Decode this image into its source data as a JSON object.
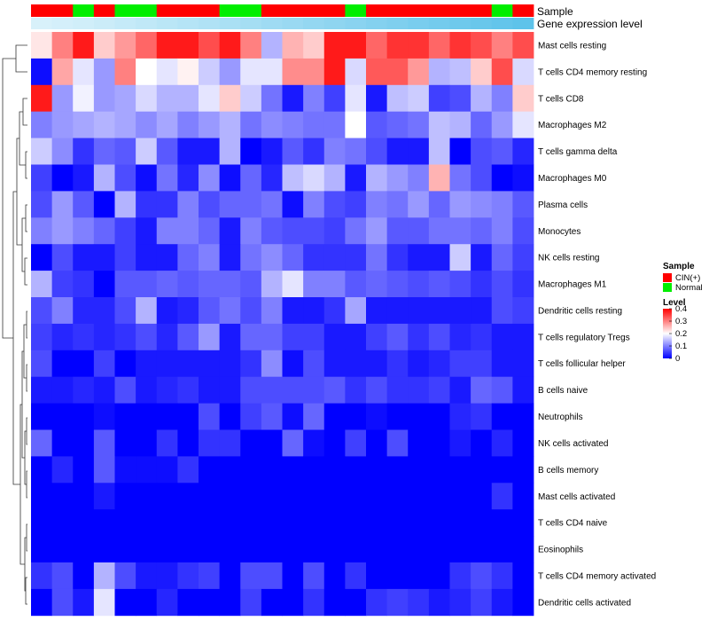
{
  "chart_data": {
    "type": "heatmap",
    "title": "",
    "annotations": {
      "sample_title": "Sample",
      "gene_expr_title": "Gene expression level",
      "sample_groups": [
        "CIN(+)",
        "CIN(+)",
        "Normal",
        "CIN(+)",
        "Normal",
        "Normal",
        "CIN(+)",
        "CIN(+)",
        "CIN(+)",
        "Normal",
        "Normal",
        "CIN(+)",
        "CIN(+)",
        "CIN(+)",
        "CIN(+)",
        "Normal",
        "CIN(+)",
        "CIN(+)",
        "CIN(+)",
        "CIN(+)",
        "CIN(+)",
        "CIN(+)",
        "Normal",
        "CIN(+)"
      ],
      "gene_expression": [
        0.1,
        0.13,
        0.16,
        0.2,
        0.24,
        0.28,
        0.32,
        0.36,
        0.4,
        0.44,
        0.48,
        0.52,
        0.56,
        0.6,
        0.64,
        0.68,
        0.72,
        0.76,
        0.8,
        0.84,
        0.88,
        0.92,
        0.96,
        1.0
      ]
    },
    "rows": [
      "Mast cells resting",
      "T cells CD4 memory resting",
      "T cells CD8",
      "Macrophages M2",
      "T cells gamma delta",
      "Macrophages M0",
      "Plasma cells",
      "Monocytes",
      "NK cells resting",
      "Macrophages M1",
      "Dendritic cells resting",
      "T cells regulatory  Tregs",
      "T cells follicular helper",
      "B cells naive",
      "Neutrophils",
      "NK cells activated",
      "B cells memory",
      "Mast cells activated",
      "T cells CD4 naive",
      "Eosinophils",
      "T cells CD4 memory activated",
      "Dendritic cells activated"
    ],
    "values": [
      [
        0.22,
        0.3,
        0.38,
        0.24,
        0.28,
        0.32,
        0.38,
        0.38,
        0.34,
        0.38,
        0.3,
        0.14,
        0.26,
        0.24,
        0.38,
        0.38,
        0.32,
        0.36,
        0.36,
        0.32,
        0.36,
        0.34,
        0.3,
        0.34
      ],
      [
        0.01,
        0.27,
        0.18,
        0.12,
        0.3,
        0.2,
        0.18,
        0.21,
        0.16,
        0.12,
        0.18,
        0.18,
        0.29,
        0.29,
        0.38,
        0.17,
        0.33,
        0.33,
        0.28,
        0.14,
        0.15,
        0.24,
        0.34,
        0.17
      ],
      [
        0.38,
        0.12,
        0.19,
        0.12,
        0.13,
        0.17,
        0.14,
        0.14,
        0.18,
        0.24,
        0.16,
        0.09,
        0.02,
        0.1,
        0.05,
        0.18,
        0.02,
        0.15,
        0.16,
        0.05,
        0.06,
        0.14,
        0.1,
        0.24
      ],
      [
        0.1,
        0.12,
        0.13,
        0.14,
        0.13,
        0.11,
        0.13,
        0.1,
        0.12,
        0.14,
        0.09,
        0.11,
        0.1,
        0.09,
        0.09,
        0.2,
        0.07,
        0.08,
        0.09,
        0.15,
        0.14,
        0.08,
        0.12,
        0.18
      ],
      [
        0.16,
        0.11,
        0.04,
        0.08,
        0.07,
        0.16,
        0.07,
        0.02,
        0.02,
        0.14,
        0.0,
        0.02,
        0.07,
        0.04,
        0.1,
        0.09,
        0.06,
        0.02,
        0.02,
        0.15,
        0.0,
        0.06,
        0.07,
        0.03
      ],
      [
        0.05,
        0.0,
        0.02,
        0.14,
        0.06,
        0.01,
        0.09,
        0.03,
        0.11,
        0.01,
        0.08,
        0.03,
        0.15,
        0.17,
        0.14,
        0.02,
        0.14,
        0.12,
        0.1,
        0.26,
        0.09,
        0.06,
        0.0,
        0.01
      ],
      [
        0.06,
        0.12,
        0.07,
        0.0,
        0.14,
        0.04,
        0.04,
        0.1,
        0.06,
        0.08,
        0.08,
        0.09,
        0.01,
        0.1,
        0.06,
        0.05,
        0.1,
        0.09,
        0.12,
        0.08,
        0.12,
        0.11,
        0.1,
        0.07
      ],
      [
        0.1,
        0.12,
        0.1,
        0.08,
        0.05,
        0.02,
        0.1,
        0.1,
        0.08,
        0.02,
        0.1,
        0.07,
        0.06,
        0.06,
        0.05,
        0.09,
        0.12,
        0.07,
        0.07,
        0.09,
        0.09,
        0.08,
        0.1,
        0.06
      ],
      [
        0.0,
        0.06,
        0.02,
        0.02,
        0.05,
        0.02,
        0.02,
        0.08,
        0.1,
        0.02,
        0.09,
        0.11,
        0.08,
        0.04,
        0.04,
        0.04,
        0.09,
        0.04,
        0.02,
        0.02,
        0.16,
        0.02,
        0.08,
        0.05
      ],
      [
        0.14,
        0.05,
        0.04,
        0.0,
        0.07,
        0.07,
        0.08,
        0.07,
        0.08,
        0.08,
        0.07,
        0.14,
        0.18,
        0.1,
        0.1,
        0.07,
        0.08,
        0.07,
        0.06,
        0.07,
        0.06,
        0.04,
        0.06,
        0.04
      ],
      [
        0.06,
        0.1,
        0.03,
        0.03,
        0.06,
        0.14,
        0.02,
        0.03,
        0.07,
        0.09,
        0.06,
        0.1,
        0.02,
        0.02,
        0.04,
        0.13,
        0.02,
        0.02,
        0.02,
        0.02,
        0.02,
        0.02,
        0.06,
        0.05
      ],
      [
        0.05,
        0.03,
        0.04,
        0.03,
        0.04,
        0.06,
        0.03,
        0.07,
        0.12,
        0.02,
        0.08,
        0.08,
        0.05,
        0.05,
        0.02,
        0.02,
        0.05,
        0.07,
        0.04,
        0.06,
        0.03,
        0.04,
        0.02,
        0.02
      ],
      [
        0.06,
        0.0,
        0.0,
        0.05,
        0.0,
        0.02,
        0.02,
        0.02,
        0.02,
        0.02,
        0.04,
        0.11,
        0.01,
        0.06,
        0.02,
        0.02,
        0.02,
        0.04,
        0.02,
        0.03,
        0.05,
        0.05,
        0.02,
        0.02
      ],
      [
        0.02,
        0.02,
        0.03,
        0.02,
        0.06,
        0.02,
        0.03,
        0.04,
        0.02,
        0.02,
        0.06,
        0.06,
        0.06,
        0.06,
        0.07,
        0.04,
        0.06,
        0.04,
        0.04,
        0.05,
        0.02,
        0.08,
        0.07,
        0.02
      ],
      [
        0.0,
        0.0,
        0.0,
        0.01,
        0.0,
        0.0,
        0.0,
        0.0,
        0.06,
        0.0,
        0.05,
        0.07,
        0.01,
        0.08,
        0.0,
        0.0,
        0.01,
        0.0,
        0.0,
        0.0,
        0.03,
        0.04,
        0.0,
        0.0
      ],
      [
        0.08,
        0.0,
        0.0,
        0.07,
        0.0,
        0.0,
        0.04,
        0.0,
        0.04,
        0.04,
        0.0,
        0.0,
        0.08,
        0.01,
        0.0,
        0.05,
        0.0,
        0.06,
        0.0,
        0.0,
        0.02,
        0.0,
        0.03,
        0.0
      ],
      [
        0.0,
        0.03,
        0.0,
        0.07,
        0.01,
        0.01,
        0.01,
        0.04,
        0.0,
        0.0,
        0.0,
        0.0,
        0.0,
        0.0,
        0.0,
        0.0,
        0.0,
        0.0,
        0.0,
        0.0,
        0.0,
        0.0,
        0.0,
        0.0
      ],
      [
        0.0,
        0.0,
        0.0,
        0.02,
        0.0,
        0.0,
        0.0,
        0.0,
        0.0,
        0.0,
        0.0,
        0.0,
        0.0,
        0.0,
        0.0,
        0.0,
        0.0,
        0.0,
        0.0,
        0.0,
        0.0,
        0.0,
        0.04,
        0.0
      ],
      [
        0.0,
        0.0,
        0.0,
        0.0,
        0.0,
        0.0,
        0.0,
        0.0,
        0.0,
        0.0,
        0.0,
        0.0,
        0.0,
        0.0,
        0.0,
        0.0,
        0.0,
        0.0,
        0.0,
        0.0,
        0.0,
        0.0,
        0.0,
        0.0
      ],
      [
        0.0,
        0.0,
        0.0,
        0.0,
        0.0,
        0.0,
        0.0,
        0.0,
        0.0,
        0.0,
        0.0,
        0.0,
        0.0,
        0.0,
        0.0,
        0.0,
        0.0,
        0.0,
        0.0,
        0.0,
        0.0,
        0.0,
        0.0,
        0.0
      ],
      [
        0.04,
        0.06,
        0.0,
        0.14,
        0.06,
        0.02,
        0.02,
        0.04,
        0.05,
        0.0,
        0.06,
        0.06,
        0.0,
        0.06,
        0.0,
        0.04,
        0.0,
        0.0,
        0.0,
        0.0,
        0.04,
        0.06,
        0.04,
        0.0
      ],
      [
        0.0,
        0.06,
        0.02,
        0.18,
        0.0,
        0.0,
        0.03,
        0.0,
        0.0,
        0.0,
        0.05,
        0.0,
        0.0,
        0.04,
        0.0,
        0.0,
        0.04,
        0.05,
        0.04,
        0.02,
        0.03,
        0.05,
        0.02,
        0.0
      ]
    ],
    "legend": {
      "sample_title": "Sample",
      "sample_entries": [
        {
          "label": "CIN(+)",
          "color": "#ff0000"
        },
        {
          "label": "Normal",
          "color": "#00ee00"
        }
      ],
      "level_title": "Level",
      "level_ticks": [
        "0.4",
        "0.3",
        "0.2",
        "0.1",
        "0"
      ],
      "level_range": [
        0,
        0.4
      ],
      "level_colors": [
        "#0000ff",
        "#ffffff",
        "#ff0000"
      ]
    }
  }
}
